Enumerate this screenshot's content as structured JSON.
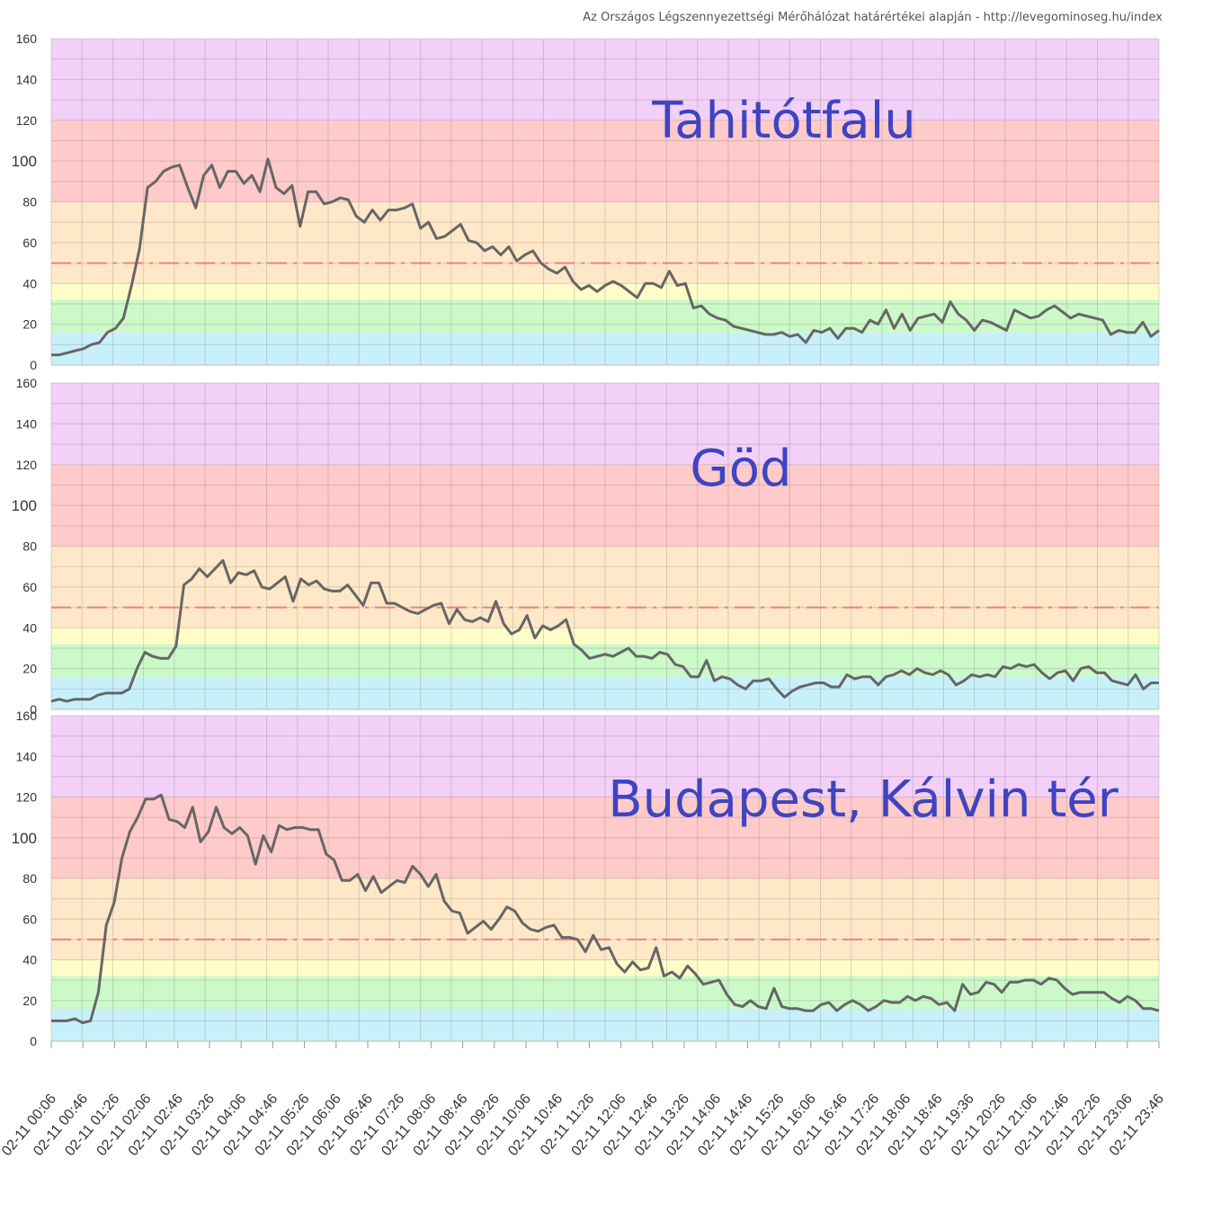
{
  "source_note": "Az Országos Légszennyezettségi Mérőhálózat határértékei alapján - http://levegominoseg.hu/index",
  "chart_data": [
    {
      "type": "line",
      "title": "Tahitótfalu",
      "ylim": [
        0,
        160
      ],
      "yticks": [
        0,
        20,
        40,
        60,
        80,
        100,
        120,
        140,
        160
      ],
      "limit_line": 50,
      "bands": [
        {
          "from": 0,
          "to": 16,
          "color": "#c8f0fa"
        },
        {
          "from": 16,
          "to": 32,
          "color": "#ccf9c8"
        },
        {
          "from": 32,
          "to": 40,
          "color": "#fefdc8"
        },
        {
          "from": 40,
          "to": 80,
          "color": "#ffe8c8"
        },
        {
          "from": 80,
          "to": 120,
          "color": "#ffcaca"
        },
        {
          "from": 120,
          "to": 160,
          "color": "#f2d0f8"
        }
      ],
      "series": [
        {
          "values": [
            5,
            5,
            6,
            7,
            8,
            10,
            11,
            16,
            18,
            23,
            39,
            57,
            87,
            90,
            95,
            97,
            98,
            87,
            77,
            93,
            98,
            87,
            95,
            95,
            89,
            93,
            85,
            101,
            87,
            84,
            88,
            68,
            85,
            85,
            79,
            80,
            82,
            81,
            73,
            70,
            76,
            71,
            76,
            76,
            77,
            79,
            67,
            70,
            62,
            63,
            66,
            69,
            61,
            60,
            56,
            58,
            54,
            58,
            51,
            54,
            56,
            50,
            47,
            45,
            48,
            41,
            37,
            39,
            36,
            39,
            41,
            39,
            36,
            33,
            40,
            40,
            38,
            46,
            39,
            40,
            28,
            29,
            25,
            23,
            22,
            19,
            18,
            17,
            16,
            15,
            15,
            16,
            14,
            15,
            11,
            17,
            16,
            18,
            13,
            18,
            18,
            16,
            22,
            20,
            27,
            18,
            25,
            17,
            23,
            24,
            25,
            21,
            31,
            25,
            22,
            17,
            22,
            21,
            19,
            17,
            27,
            25,
            23,
            24,
            27,
            29,
            26,
            23,
            25,
            24,
            23,
            22,
            15,
            17,
            16,
            16,
            21,
            14,
            17
          ]
        }
      ]
    },
    {
      "type": "line",
      "title": "Göd",
      "ylim": [
        0,
        160
      ],
      "yticks": [
        0,
        20,
        40,
        60,
        80,
        100,
        120,
        140,
        160
      ],
      "limit_line": 50,
      "bands": [
        {
          "from": 0,
          "to": 16,
          "color": "#c8f0fa"
        },
        {
          "from": 16,
          "to": 32,
          "color": "#ccf9c8"
        },
        {
          "from": 32,
          "to": 40,
          "color": "#fefdc8"
        },
        {
          "from": 40,
          "to": 80,
          "color": "#ffe8c8"
        },
        {
          "from": 80,
          "to": 120,
          "color": "#ffcaca"
        },
        {
          "from": 120,
          "to": 160,
          "color": "#f2d0f8"
        }
      ],
      "series": [
        {
          "values": [
            4,
            5,
            4,
            5,
            5,
            5,
            7,
            8,
            8,
            8,
            10,
            20,
            28,
            26,
            25,
            25,
            31,
            61,
            64,
            69,
            65,
            69,
            73,
            62,
            67,
            66,
            68,
            60,
            59,
            62,
            65,
            53,
            64,
            61,
            63,
            59,
            58,
            58,
            61,
            56,
            51,
            62,
            62,
            52,
            52,
            50,
            48,
            47,
            49,
            51,
            52,
            42,
            49,
            44,
            43,
            45,
            43,
            53,
            42,
            37,
            39,
            46,
            35,
            41,
            39,
            41,
            44,
            32,
            29,
            25,
            26,
            27,
            26,
            28,
            30,
            26,
            26,
            25,
            28,
            27,
            22,
            21,
            16,
            16,
            24,
            14,
            16,
            15,
            12,
            10,
            14,
            14,
            15,
            10,
            6,
            9,
            11,
            12,
            13,
            13,
            11,
            11,
            17,
            15,
            16,
            16,
            12,
            16,
            17,
            19,
            17,
            20,
            18,
            17,
            19,
            17,
            12,
            14,
            17,
            16,
            17,
            16,
            21,
            20,
            22,
            21,
            22,
            18,
            15,
            18,
            19,
            14,
            20,
            21,
            18,
            18,
            14,
            13,
            12,
            17,
            10,
            13,
            13
          ]
        }
      ]
    },
    {
      "type": "line",
      "title": "Budapest, Kálvin tér",
      "ylim": [
        0,
        160
      ],
      "yticks": [
        0,
        20,
        40,
        60,
        80,
        100,
        120,
        140,
        160
      ],
      "limit_line": 50,
      "bands": [
        {
          "from": 0,
          "to": 16,
          "color": "#c8f0fa"
        },
        {
          "from": 16,
          "to": 32,
          "color": "#ccf9c8"
        },
        {
          "from": 32,
          "to": 40,
          "color": "#fefdc8"
        },
        {
          "from": 40,
          "to": 80,
          "color": "#ffe8c8"
        },
        {
          "from": 80,
          "to": 120,
          "color": "#ffcaca"
        },
        {
          "from": 120,
          "to": 160,
          "color": "#f2d0f8"
        }
      ],
      "series": [
        {
          "values": [
            10,
            10,
            10,
            11,
            9,
            10,
            24,
            57,
            68,
            90,
            103,
            110,
            119,
            119,
            121,
            109,
            108,
            105,
            115,
            98,
            103,
            115,
            105,
            102,
            105,
            101,
            87,
            101,
            93,
            106,
            104,
            105,
            105,
            104,
            104,
            92,
            89,
            79,
            79,
            82,
            74,
            81,
            73,
            76,
            79,
            78,
            86,
            82,
            76,
            82,
            69,
            64,
            63,
            53,
            56,
            59,
            55,
            60,
            66,
            64,
            58,
            55,
            54,
            56,
            57,
            51,
            51,
            50,
            44,
            52,
            45,
            46,
            38,
            34,
            39,
            35,
            36,
            46,
            32,
            34,
            31,
            37,
            33,
            28,
            29,
            30,
            23,
            18,
            17,
            20,
            17,
            16,
            26,
            17,
            16,
            16,
            15,
            15,
            18,
            19,
            15,
            18,
            20,
            18,
            15,
            17,
            20,
            19,
            19,
            22,
            20,
            22,
            21,
            18,
            19,
            15,
            28,
            23,
            24,
            29,
            28,
            24,
            29,
            29,
            30,
            30,
            28,
            31,
            30,
            26,
            23,
            24,
            24,
            24,
            24,
            21,
            19,
            22,
            20,
            16,
            16,
            15
          ]
        }
      ]
    }
  ],
  "x_tick_labels": [
    "02-11 00:06",
    "02-11 00:46",
    "02-11 01:26",
    "02-11 02:06",
    "02-11 02:46",
    "02-11 03:26",
    "02-11 04:06",
    "02-11 04:46",
    "02-11 05:26",
    "02-11 06:06",
    "02-11 06:46",
    "02-11 07:26",
    "02-11 08:06",
    "02-11 08:46",
    "02-11 09:26",
    "02-11 10:06",
    "02-11 10:46",
    "02-11 11:26",
    "02-11 12:06",
    "02-11 12:46",
    "02-11 13:26",
    "02-11 14:06",
    "02-11 14:46",
    "02-11 15:26",
    "02-11 16:06",
    "02-11 16:46",
    "02-11 17:26",
    "02-11 18:06",
    "02-11 18:46",
    "02-11 19:36",
    "02-11 20:26",
    "02-11 21:06",
    "02-11 21:46",
    "02-11 22:26",
    "02-11 23:06",
    "02-11 23:46"
  ],
  "colors": {
    "line": "#666666",
    "limit": "#f08080",
    "station_label": "#3f44c0",
    "grid": "rgba(120,120,120,0.28)"
  }
}
